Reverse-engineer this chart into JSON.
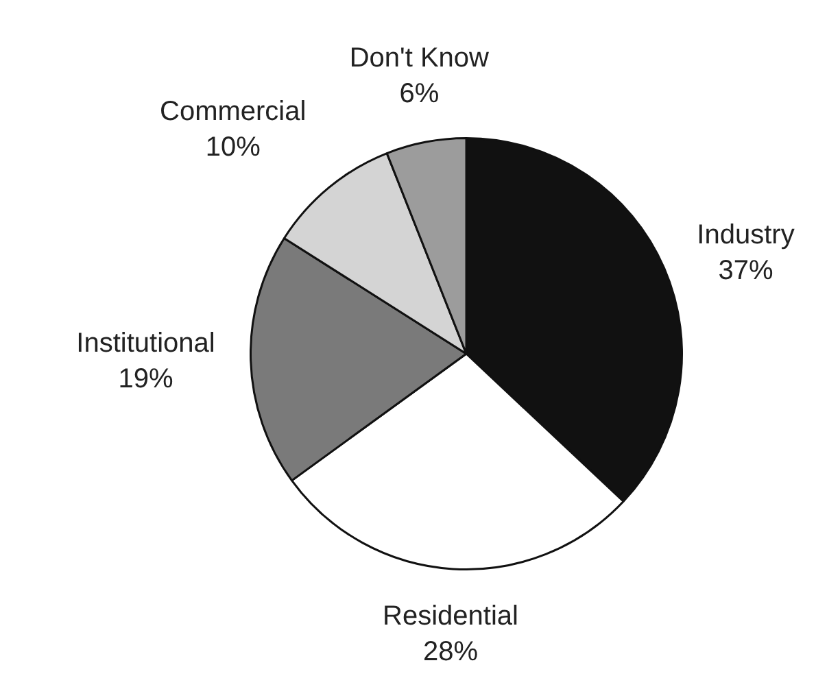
{
  "chart_data": {
    "type": "pie",
    "categories": [
      "Industry",
      "Residential",
      "Institutional",
      "Commercial",
      "Don't Know"
    ],
    "values": [
      37,
      28,
      19,
      10,
      6
    ],
    "colors": [
      "#111111",
      "#ffffff",
      "#7a7a7a",
      "#d4d4d4",
      "#9c9c9c"
    ],
    "value_labels": [
      "37%",
      "28%",
      "19%",
      "10%",
      "6%"
    ],
    "legend": false
  }
}
